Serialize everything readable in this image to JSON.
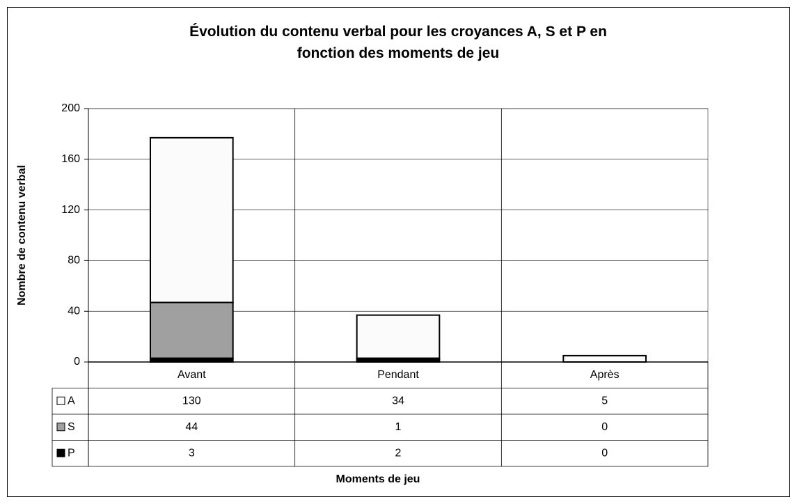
{
  "chart_data": {
    "type": "stacked_bar",
    "title": "Évolution du contenu verbal pour les croyances A, S et P en fonction des moments de jeu",
    "x_label": "Moments de jeu",
    "y_label": "Nombre de contenu verbal",
    "categories": [
      "Avant",
      "Pendant",
      "Après"
    ],
    "series": [
      {
        "name": "A",
        "color": "#fbfbfb",
        "values": [
          130,
          34,
          5
        ]
      },
      {
        "name": "S",
        "color": "#a0a0a0",
        "values": [
          44,
          1,
          0
        ]
      },
      {
        "name": "P",
        "color": "#000000",
        "values": [
          3,
          2,
          0
        ]
      }
    ],
    "ylim": [
      0,
      200
    ],
    "yticks": [
      0,
      40,
      80,
      120,
      160,
      200
    ],
    "grid": true,
    "data_table": true
  }
}
